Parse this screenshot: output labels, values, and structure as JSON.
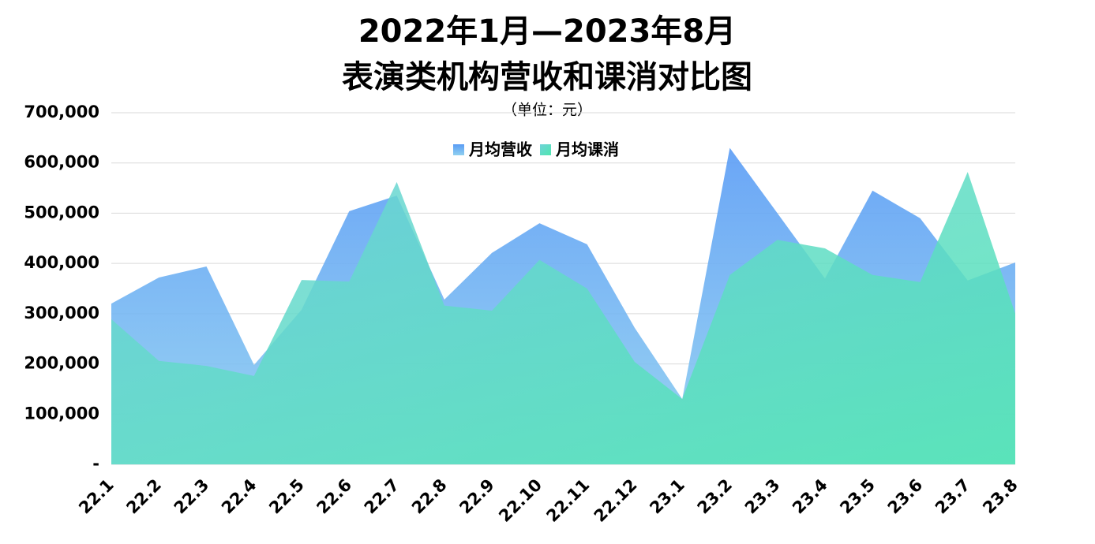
{
  "chart_data": {
    "type": "area",
    "title": [
      "2022年1月—2023年8月",
      "表演类机构营收和课消对比图"
    ],
    "subtitle": "（单位：元）",
    "categories": [
      "22.1",
      "22.2",
      "22.3",
      "22.4",
      "22.5",
      "22.6",
      "22.7",
      "22.8",
      "22.9",
      "22.10",
      "22.11",
      "22.12",
      "23.1",
      "23.2",
      "23.3",
      "23.4",
      "23.5",
      "23.6",
      "23.7",
      "23.8"
    ],
    "series": [
      {
        "name": "月均营收",
        "color": "#6aa8f5",
        "values": [
          320000,
          372000,
          394000,
          198000,
          308000,
          504000,
          535000,
          328000,
          421000,
          480000,
          438000,
          272000,
          130000,
          630000,
          500000,
          370000,
          545000,
          490000,
          366000,
          402000
        ]
      },
      {
        "name": "月均课消",
        "color": "#4fe6b0",
        "values": [
          289000,
          206000,
          196000,
          176000,
          367000,
          364000,
          562000,
          316000,
          306000,
          407000,
          350000,
          204000,
          130000,
          377000,
          447000,
          430000,
          377000,
          363000,
          582000,
          300000
        ]
      }
    ],
    "ylim": [
      0,
      700000
    ],
    "yticks": [
      {
        "value": 0,
        "label": "-"
      },
      {
        "value": 100000,
        "label": "100,000"
      },
      {
        "value": 200000,
        "label": "200,000"
      },
      {
        "value": 300000,
        "label": "300,000"
      },
      {
        "value": 400000,
        "label": "400,000"
      },
      {
        "value": 500000,
        "label": "500,000"
      },
      {
        "value": 600000,
        "label": "600,000"
      },
      {
        "value": 700000,
        "label": "700,000"
      }
    ],
    "grid": true
  }
}
